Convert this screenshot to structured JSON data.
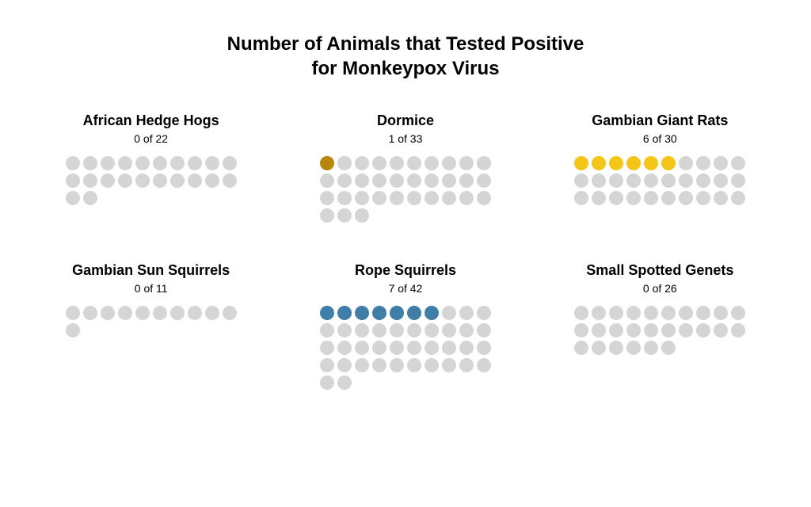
{
  "title_line1": "Number of Animals that Tested Positive",
  "title_line2": "for Monkeypox Virus",
  "title_fontsize": 24,
  "panel_title_fontsize": 18,
  "panel_count_fontsize": 14,
  "background_color": "#ffffff",
  "text_color": "#000000",
  "negative_dot_color": "#d5d5d5",
  "dot_diameter": 18,
  "dot_gap": 4,
  "dots_per_row": 10,
  "panels": [
    {
      "name": "African Hedge Hogs",
      "positive": 0,
      "total": 22,
      "positive_color": "#d5d5d5"
    },
    {
      "name": "Dormice",
      "positive": 1,
      "total": 33,
      "positive_color": "#b8860b"
    },
    {
      "name": "Gambian Giant Rats",
      "positive": 6,
      "total": 30,
      "positive_color": "#f5c518"
    },
    {
      "name": "Gambian Sun Squirrels",
      "positive": 0,
      "total": 11,
      "positive_color": "#d5d5d5"
    },
    {
      "name": "Rope Squirrels",
      "positive": 7,
      "total": 42,
      "positive_color": "#3f7ea6"
    },
    {
      "name": "Small Spotted Genets",
      "positive": 0,
      "total": 26,
      "positive_color": "#d5d5d5"
    }
  ]
}
